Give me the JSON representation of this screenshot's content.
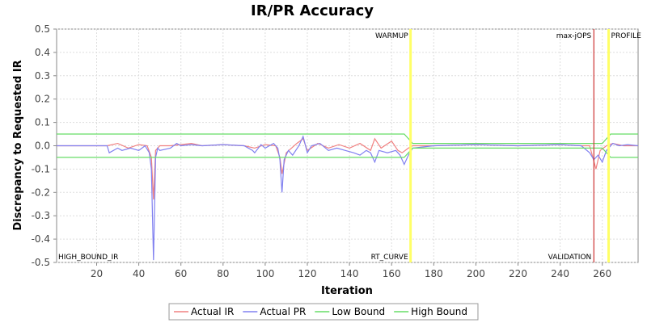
{
  "chart_data": {
    "type": "line",
    "title": "IR/PR Accuracy",
    "xlabel": "Iteration",
    "ylabel": "Discrepancy to Requested IR",
    "xlim": [
      1,
      277
    ],
    "ylim": [
      -0.5,
      0.5
    ],
    "x_ticks": [
      20,
      40,
      60,
      80,
      100,
      120,
      140,
      160,
      180,
      200,
      220,
      240,
      260
    ],
    "y_ticks": [
      -0.5,
      -0.4,
      -0.3,
      -0.2,
      -0.1,
      0.0,
      0.1,
      0.2,
      0.3,
      0.4,
      0.5
    ],
    "y_tick_labels": [
      "-0.5",
      "-0.4",
      "-0.3",
      "-0.2",
      "-0.1",
      "0.0",
      "0.1",
      "0.2",
      "0.3",
      "0.4",
      "0.5"
    ],
    "grid": true,
    "legend_position": "bottom",
    "series": [
      {
        "name": "Actual IR",
        "color": "#f08080",
        "points": [
          [
            1,
            0
          ],
          [
            25,
            0
          ],
          [
            30,
            0.01
          ],
          [
            35,
            -0.01
          ],
          [
            40,
            0.005
          ],
          [
            44,
            0
          ],
          [
            46,
            -0.05
          ],
          [
            47,
            -0.23
          ],
          [
            48,
            -0.02
          ],
          [
            50,
            0
          ],
          [
            55,
            0
          ],
          [
            60,
            0.005
          ],
          [
            65,
            0.01
          ],
          [
            70,
            0
          ],
          [
            80,
            0.005
          ],
          [
            90,
            0
          ],
          [
            95,
            -0.01
          ],
          [
            100,
            0.005
          ],
          [
            105,
            0
          ],
          [
            107,
            -0.05
          ],
          [
            108,
            -0.12
          ],
          [
            110,
            -0.03
          ],
          [
            115,
            0.01
          ],
          [
            118,
            0.03
          ],
          [
            120,
            -0.02
          ],
          [
            125,
            0.01
          ],
          [
            130,
            -0.01
          ],
          [
            135,
            0.005
          ],
          [
            140,
            -0.01
          ],
          [
            145,
            0.01
          ],
          [
            150,
            -0.02
          ],
          [
            152,
            0.03
          ],
          [
            155,
            -0.01
          ],
          [
            160,
            0.02
          ],
          [
            163,
            -0.02
          ],
          [
            165,
            -0.03
          ],
          [
            168,
            -0.01
          ],
          [
            170,
            0
          ],
          [
            180,
            0
          ],
          [
            200,
            0.005
          ],
          [
            220,
            0
          ],
          [
            240,
            0.005
          ],
          [
            250,
            0
          ],
          [
            254,
            0
          ],
          [
            257,
            -0.1
          ],
          [
            259,
            -0.02
          ],
          [
            262,
            0
          ],
          [
            265,
            0.01
          ],
          [
            270,
            0
          ],
          [
            277,
            0
          ]
        ]
      },
      {
        "name": "Actual PR",
        "color": "#8080f0",
        "points": [
          [
            1,
            0
          ],
          [
            25,
            0
          ],
          [
            26,
            -0.03
          ],
          [
            30,
            -0.01
          ],
          [
            32,
            -0.02
          ],
          [
            36,
            -0.01
          ],
          [
            40,
            -0.02
          ],
          [
            43,
            0
          ],
          [
            45,
            -0.03
          ],
          [
            46,
            -0.1
          ],
          [
            47,
            -0.49
          ],
          [
            48,
            -0.05
          ],
          [
            49,
            -0.01
          ],
          [
            50,
            -0.02
          ],
          [
            55,
            -0.01
          ],
          [
            58,
            0.01
          ],
          [
            60,
            0
          ],
          [
            65,
            0.005
          ],
          [
            70,
            0
          ],
          [
            80,
            0.005
          ],
          [
            90,
            0
          ],
          [
            94,
            -0.02
          ],
          [
            95,
            -0.03
          ],
          [
            98,
            0.005
          ],
          [
            100,
            -0.01
          ],
          [
            104,
            0.01
          ],
          [
            106,
            -0.01
          ],
          [
            107,
            -0.06
          ],
          [
            108,
            -0.2
          ],
          [
            109,
            -0.06
          ],
          [
            111,
            -0.02
          ],
          [
            113,
            -0.04
          ],
          [
            116,
            0
          ],
          [
            118,
            0.04
          ],
          [
            120,
            -0.03
          ],
          [
            122,
            0
          ],
          [
            126,
            0.01
          ],
          [
            130,
            -0.02
          ],
          [
            134,
            -0.01
          ],
          [
            138,
            -0.02
          ],
          [
            142,
            -0.03
          ],
          [
            145,
            -0.04
          ],
          [
            148,
            -0.02
          ],
          [
            150,
            -0.03
          ],
          [
            152,
            -0.07
          ],
          [
            154,
            -0.02
          ],
          [
            158,
            -0.03
          ],
          [
            162,
            -0.02
          ],
          [
            164,
            -0.04
          ],
          [
            166,
            -0.08
          ],
          [
            168,
            -0.04
          ],
          [
            170,
            -0.01
          ],
          [
            180,
            0
          ],
          [
            200,
            0.005
          ],
          [
            220,
            0
          ],
          [
            240,
            0.005
          ],
          [
            250,
            0
          ],
          [
            254,
            -0.03
          ],
          [
            256,
            -0.06
          ],
          [
            258,
            -0.04
          ],
          [
            260,
            -0.07
          ],
          [
            262,
            -0.02
          ],
          [
            265,
            0.01
          ],
          [
            268,
            0
          ],
          [
            272,
            0.005
          ],
          [
            277,
            0
          ]
        ]
      },
      {
        "name": "Low Bound",
        "color": "#66dd66",
        "points": [
          [
            1,
            -0.05
          ],
          [
            166,
            -0.05
          ],
          [
            170,
            -0.01
          ],
          [
            260,
            -0.01
          ],
          [
            264,
            -0.05
          ],
          [
            277,
            -0.05
          ]
        ]
      },
      {
        "name": "High Bound",
        "color": "#66dd66",
        "points": [
          [
            1,
            0.05
          ],
          [
            166,
            0.05
          ],
          [
            170,
            0.01
          ],
          [
            260,
            0.01
          ],
          [
            264,
            0.05
          ],
          [
            277,
            0.05
          ]
        ]
      }
    ],
    "markers": [
      {
        "label": "WARMUP",
        "x": 169,
        "color": "#ffff66",
        "label_pos": "top-left"
      },
      {
        "label": "RT_CURVE",
        "x": 169,
        "color": "#ffff66",
        "label_pos": "bottom-left"
      },
      {
        "label": "max-jOPS",
        "x": 256,
        "color": "#cc3333",
        "label_pos": "top-left"
      },
      {
        "label": "VALIDATION",
        "x": 256,
        "color": "#cc3333",
        "label_pos": "bottom-left"
      },
      {
        "label": "PROFILE",
        "x": 263,
        "color": "#ffff66",
        "label_pos": "top-right"
      },
      {
        "label": "HIGH_BOUND_IR",
        "x": 1,
        "color": "#999999",
        "label_pos": "bottom-right"
      }
    ]
  }
}
